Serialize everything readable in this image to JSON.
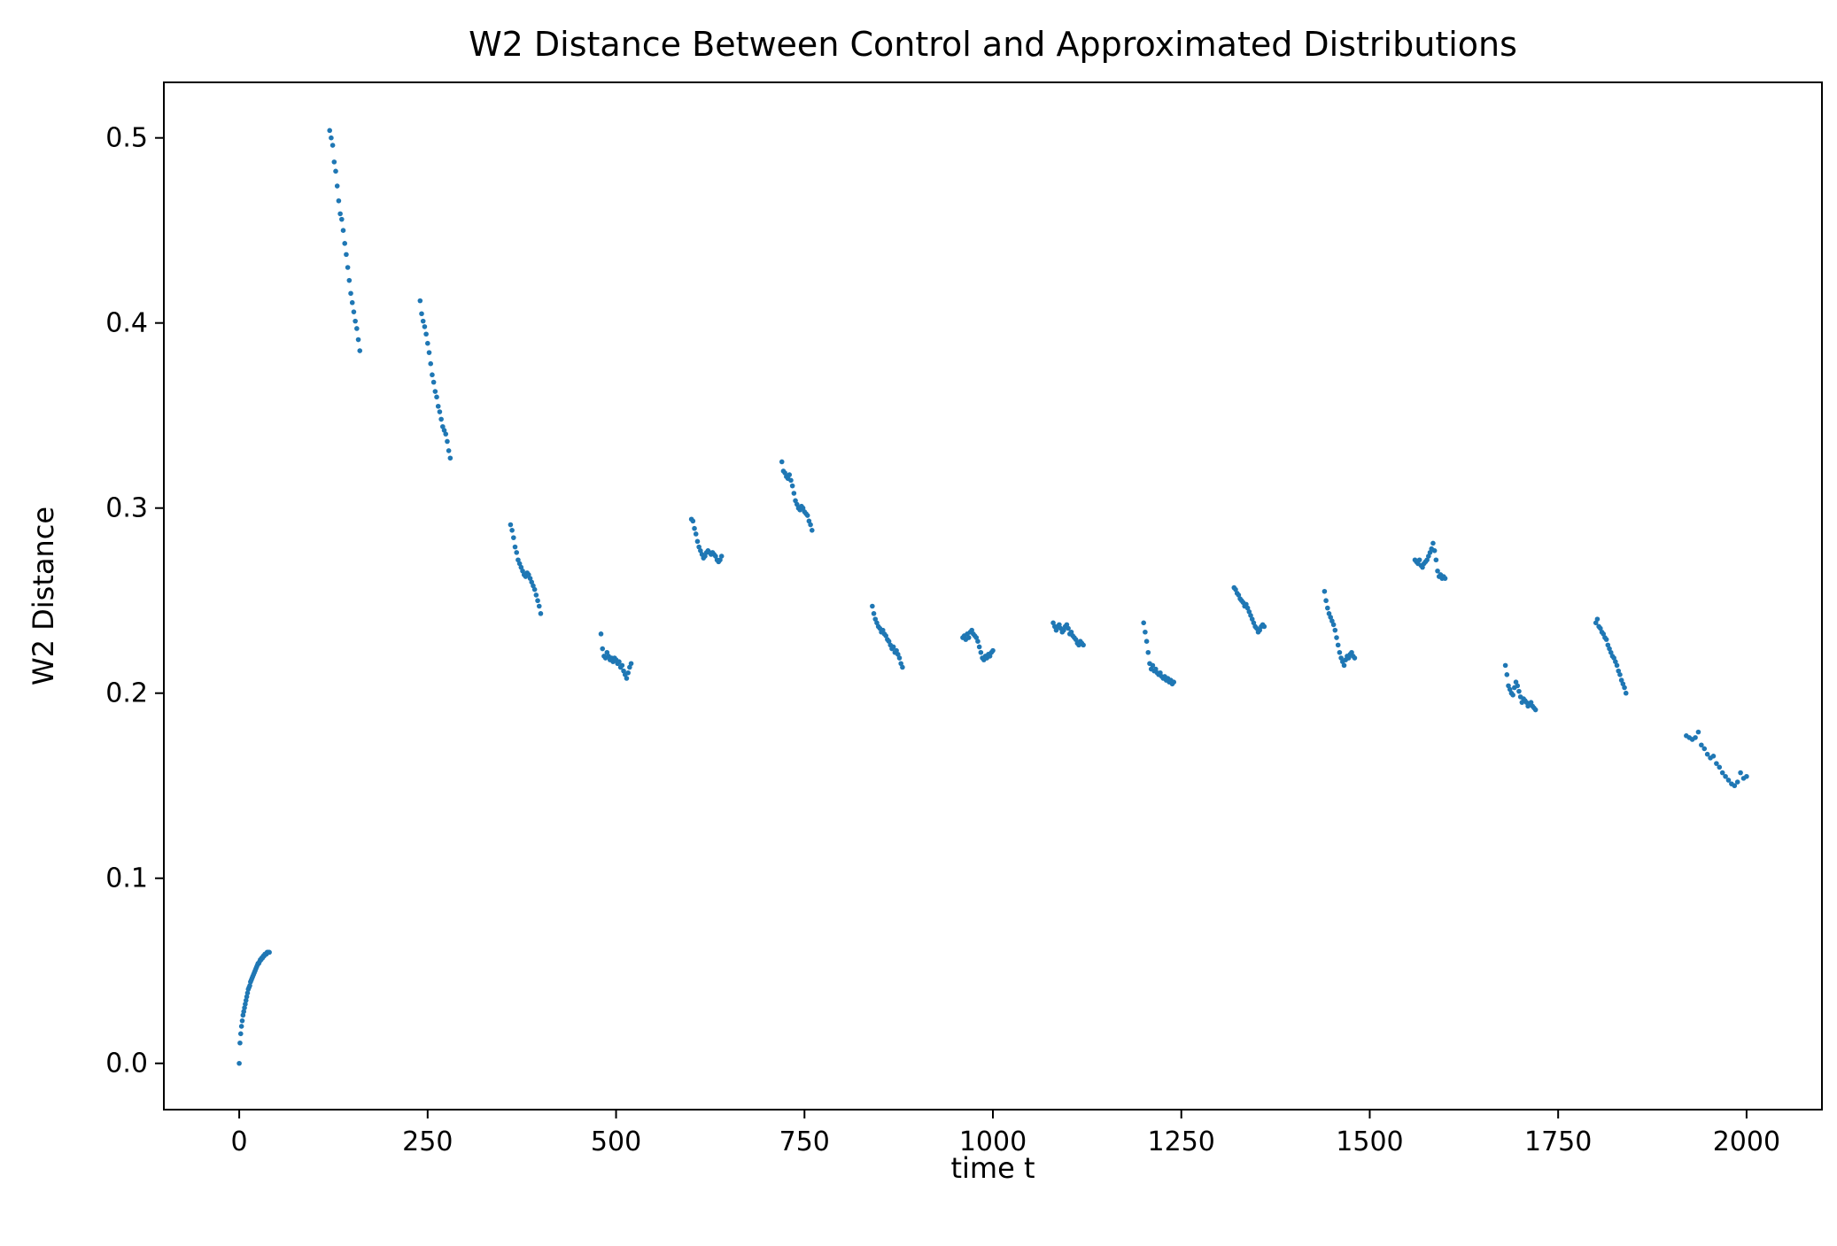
{
  "chart_data": {
    "type": "scatter",
    "title": "W2 Distance Between Control and Approximated Distributions",
    "xlabel": "time t",
    "ylabel": "W2 Distance",
    "xlim": [
      -100,
      2100
    ],
    "ylim": [
      -0.025,
      0.53
    ],
    "xticks": [
      0,
      250,
      500,
      750,
      1000,
      1250,
      1500,
      1750,
      2000
    ],
    "xtick_labels": [
      "0",
      "250",
      "500",
      "750",
      "1000",
      "1250",
      "1500",
      "1750",
      "2000"
    ],
    "yticks": [
      0.0,
      0.1,
      0.2,
      0.3,
      0.4,
      0.5
    ],
    "ytick_labels": [
      "0.0",
      "0.1",
      "0.2",
      "0.3",
      "0.4",
      "0.5"
    ],
    "grid": false,
    "marker_color": "#1f77b4",
    "series": [
      {
        "x": [
          0,
          1,
          2,
          3,
          4,
          5,
          6,
          7,
          8,
          9,
          10,
          11,
          12,
          13,
          14,
          15,
          16,
          17,
          18,
          19,
          20,
          21,
          22,
          23,
          24,
          25,
          26,
          27,
          28,
          29,
          30,
          31,
          32,
          33,
          34,
          35,
          36,
          37,
          38,
          39,
          40,
          120,
          122,
          124,
          126,
          128,
          130,
          132,
          134,
          136,
          138,
          140,
          142,
          144,
          146,
          148,
          150,
          152,
          154,
          156,
          158,
          160,
          240,
          242,
          244,
          246,
          248,
          250,
          252,
          254,
          256,
          258,
          260,
          262,
          264,
          266,
          268,
          270,
          272,
          274,
          276,
          278,
          280,
          360,
          362,
          364,
          366,
          368,
          370,
          372,
          374,
          376,
          378,
          380,
          382,
          384,
          386,
          388,
          390,
          392,
          394,
          396,
          398,
          400,
          480,
          482,
          484,
          486,
          488,
          490,
          492,
          494,
          496,
          498,
          500,
          502,
          504,
          506,
          508,
          510,
          512,
          514,
          516,
          518,
          520,
          600,
          602,
          604,
          606,
          608,
          610,
          612,
          614,
          616,
          618,
          620,
          622,
          624,
          626,
          628,
          630,
          632,
          634,
          636,
          638,
          640,
          720,
          722,
          724,
          726,
          728,
          730,
          732,
          734,
          736,
          738,
          740,
          742,
          744,
          746,
          748,
          750,
          752,
          754,
          756,
          758,
          760,
          840,
          842,
          844,
          846,
          848,
          850,
          852,
          854,
          856,
          858,
          860,
          862,
          864,
          866,
          868,
          870,
          872,
          874,
          876,
          878,
          880,
          960,
          962,
          964,
          966,
          968,
          970,
          972,
          974,
          976,
          978,
          980,
          982,
          984,
          986,
          988,
          990,
          992,
          994,
          996,
          998,
          1000,
          1080,
          1082,
          1084,
          1086,
          1088,
          1090,
          1092,
          1094,
          1096,
          1098,
          1100,
          1102,
          1104,
          1106,
          1108,
          1110,
          1112,
          1114,
          1116,
          1118,
          1120,
          1200,
          1202,
          1204,
          1206,
          1208,
          1210,
          1212,
          1214,
          1216,
          1218,
          1220,
          1222,
          1224,
          1226,
          1228,
          1230,
          1232,
          1234,
          1236,
          1238,
          1240,
          1320,
          1322,
          1324,
          1326,
          1328,
          1330,
          1332,
          1334,
          1336,
          1338,
          1340,
          1342,
          1344,
          1346,
          1348,
          1350,
          1352,
          1354,
          1356,
          1358,
          1360,
          1440,
          1442,
          1444,
          1446,
          1448,
          1450,
          1452,
          1454,
          1456,
          1458,
          1460,
          1462,
          1464,
          1466,
          1468,
          1470,
          1472,
          1474,
          1476,
          1478,
          1480,
          1560,
          1562,
          1564,
          1566,
          1568,
          1570,
          1572,
          1574,
          1576,
          1578,
          1580,
          1582,
          1584,
          1586,
          1588,
          1590,
          1592,
          1594,
          1596,
          1598,
          1600,
          1680,
          1682,
          1684,
          1686,
          1688,
          1690,
          1692,
          1694,
          1696,
          1698,
          1700,
          1702,
          1704,
          1706,
          1708,
          1710,
          1712,
          1714,
          1716,
          1718,
          1720,
          1800,
          1802,
          1804,
          1806,
          1808,
          1810,
          1812,
          1814,
          1816,
          1818,
          1820,
          1822,
          1824,
          1826,
          1828,
          1830,
          1832,
          1834,
          1836,
          1838,
          1840,
          1920,
          1924,
          1928,
          1932,
          1936,
          1940,
          1944,
          1948,
          1952,
          1956,
          1960,
          1964,
          1968,
          1972,
          1976,
          1980,
          1984,
          1988,
          1992,
          1996,
          2000
        ],
        "y": [
          0.0,
          0.011,
          0.016,
          0.02,
          0.023,
          0.026,
          0.028,
          0.03,
          0.032,
          0.034,
          0.036,
          0.038,
          0.04,
          0.041,
          0.042,
          0.044,
          0.045,
          0.046,
          0.047,
          0.048,
          0.049,
          0.05,
          0.051,
          0.052,
          0.053,
          0.054,
          0.054,
          0.055,
          0.056,
          0.056,
          0.057,
          0.057,
          0.058,
          0.058,
          0.059,
          0.059,
          0.059,
          0.06,
          0.06,
          0.06,
          0.06,
          0.504,
          0.5,
          0.496,
          0.487,
          0.482,
          0.474,
          0.466,
          0.459,
          0.456,
          0.45,
          0.443,
          0.437,
          0.43,
          0.423,
          0.416,
          0.411,
          0.406,
          0.401,
          0.397,
          0.391,
          0.385,
          0.412,
          0.405,
          0.401,
          0.398,
          0.394,
          0.389,
          0.384,
          0.378,
          0.372,
          0.368,
          0.363,
          0.36,
          0.355,
          0.352,
          0.348,
          0.344,
          0.342,
          0.34,
          0.336,
          0.331,
          0.327,
          0.291,
          0.288,
          0.284,
          0.279,
          0.276,
          0.272,
          0.27,
          0.268,
          0.266,
          0.264,
          0.263,
          0.265,
          0.264,
          0.262,
          0.26,
          0.258,
          0.256,
          0.253,
          0.25,
          0.247,
          0.243,
          0.232,
          0.224,
          0.22,
          0.219,
          0.222,
          0.22,
          0.218,
          0.219,
          0.217,
          0.219,
          0.218,
          0.216,
          0.217,
          0.214,
          0.215,
          0.212,
          0.21,
          0.208,
          0.211,
          0.214,
          0.216,
          0.294,
          0.293,
          0.289,
          0.286,
          0.282,
          0.279,
          0.277,
          0.275,
          0.273,
          0.274,
          0.276,
          0.277,
          0.276,
          0.275,
          0.276,
          0.275,
          0.274,
          0.272,
          0.271,
          0.272,
          0.274,
          0.325,
          0.32,
          0.319,
          0.317,
          0.316,
          0.318,
          0.315,
          0.312,
          0.308,
          0.304,
          0.302,
          0.3,
          0.299,
          0.301,
          0.3,
          0.298,
          0.297,
          0.296,
          0.293,
          0.291,
          0.288,
          0.247,
          0.243,
          0.24,
          0.238,
          0.236,
          0.235,
          0.233,
          0.234,
          0.232,
          0.231,
          0.229,
          0.228,
          0.226,
          0.224,
          0.225,
          0.222,
          0.223,
          0.221,
          0.219,
          0.216,
          0.214,
          0.23,
          0.231,
          0.229,
          0.232,
          0.23,
          0.233,
          0.234,
          0.232,
          0.231,
          0.23,
          0.228,
          0.225,
          0.222,
          0.219,
          0.218,
          0.22,
          0.219,
          0.221,
          0.22,
          0.222,
          0.223,
          0.238,
          0.236,
          0.234,
          0.236,
          0.237,
          0.235,
          0.233,
          0.234,
          0.236,
          0.237,
          0.235,
          0.232,
          0.233,
          0.231,
          0.23,
          0.229,
          0.227,
          0.226,
          0.228,
          0.227,
          0.226,
          0.238,
          0.233,
          0.228,
          0.222,
          0.216,
          0.213,
          0.215,
          0.212,
          0.213,
          0.211,
          0.21,
          0.211,
          0.209,
          0.208,
          0.209,
          0.207,
          0.208,
          0.206,
          0.207,
          0.205,
          0.206,
          0.257,
          0.256,
          0.254,
          0.253,
          0.251,
          0.25,
          0.249,
          0.247,
          0.248,
          0.246,
          0.244,
          0.242,
          0.24,
          0.238,
          0.236,
          0.235,
          0.233,
          0.234,
          0.236,
          0.237,
          0.236,
          0.255,
          0.25,
          0.246,
          0.243,
          0.241,
          0.239,
          0.237,
          0.234,
          0.23,
          0.226,
          0.222,
          0.219,
          0.217,
          0.215,
          0.218,
          0.22,
          0.219,
          0.221,
          0.222,
          0.22,
          0.219,
          0.272,
          0.271,
          0.27,
          0.272,
          0.269,
          0.268,
          0.27,
          0.271,
          0.272,
          0.274,
          0.276,
          0.278,
          0.281,
          0.277,
          0.272,
          0.266,
          0.263,
          0.264,
          0.262,
          0.263,
          0.262,
          0.215,
          0.21,
          0.204,
          0.202,
          0.2,
          0.199,
          0.203,
          0.206,
          0.204,
          0.201,
          0.198,
          0.195,
          0.197,
          0.196,
          0.195,
          0.193,
          0.194,
          0.195,
          0.193,
          0.192,
          0.191,
          0.238,
          0.24,
          0.236,
          0.235,
          0.233,
          0.232,
          0.23,
          0.229,
          0.226,
          0.224,
          0.222,
          0.22,
          0.219,
          0.217,
          0.215,
          0.212,
          0.21,
          0.207,
          0.205,
          0.203,
          0.2,
          0.177,
          0.176,
          0.175,
          0.176,
          0.179,
          0.172,
          0.17,
          0.167,
          0.165,
          0.166,
          0.162,
          0.16,
          0.157,
          0.155,
          0.153,
          0.151,
          0.15,
          0.152,
          0.157,
          0.154,
          0.155
        ]
      }
    ]
  }
}
